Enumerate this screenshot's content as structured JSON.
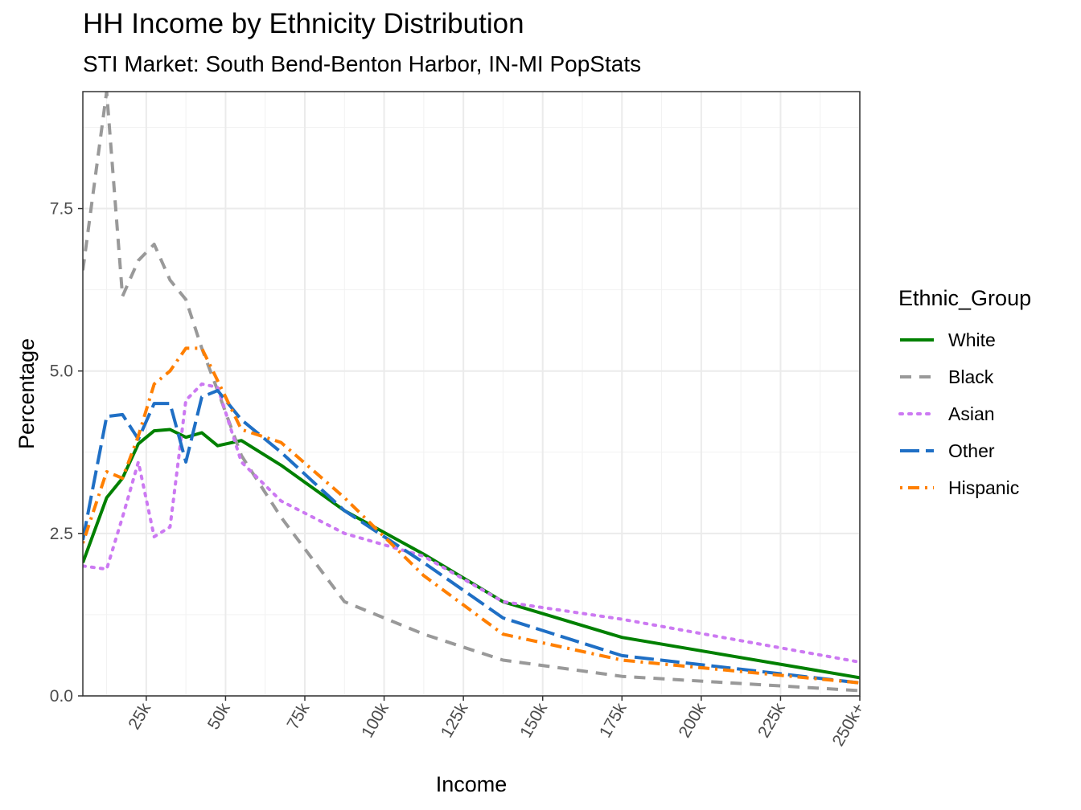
{
  "chart_data": {
    "type": "line",
    "title": "HH Income by Ethnicity Distribution",
    "subtitle": "STI Market: South Bend-Benton Harbor, IN-MI PopStats",
    "xlabel": "Income",
    "ylabel": "Percentage",
    "xlim": [
      5,
      250
    ],
    "ylim": [
      0,
      9.3
    ],
    "x_ticks": [
      25,
      50,
      75,
      100,
      125,
      150,
      175,
      200,
      225,
      250
    ],
    "x_tick_labels": [
      "25k",
      "50k",
      "75k",
      "100k",
      "125k",
      "150k",
      "175k",
      "200k",
      "225k",
      "250k+"
    ],
    "y_ticks": [
      0,
      2.5,
      5,
      7.5
    ],
    "y_tick_labels": [
      "0.0",
      "2.5",
      "5.0",
      "7.5"
    ],
    "grid": true,
    "legend_title": "Ethnic_Group",
    "legend_position": "right",
    "x": [
      5,
      12.5,
      17.5,
      22.5,
      27.5,
      32.5,
      37.5,
      42.5,
      47.5,
      55,
      67.5,
      87.5,
      112.5,
      137.5,
      175,
      250
    ],
    "series": [
      {
        "name": "White",
        "color": "#008000",
        "dash": "solid",
        "values": [
          2.05,
          3.05,
          3.35,
          3.88,
          4.08,
          4.1,
          3.98,
          4.05,
          3.85,
          3.93,
          3.55,
          2.85,
          2.18,
          1.45,
          0.9,
          0.28
        ]
      },
      {
        "name": "Black",
        "color": "#999999",
        "dash": "dashed",
        "values": [
          6.55,
          9.3,
          6.15,
          6.7,
          6.95,
          6.4,
          6.1,
          5.35,
          4.7,
          3.7,
          2.75,
          1.45,
          0.95,
          0.55,
          0.3,
          0.08
        ]
      },
      {
        "name": "Asian",
        "color": "#CC79F2",
        "dash": "dotted",
        "values": [
          2.0,
          1.95,
          2.75,
          3.6,
          2.45,
          2.6,
          4.55,
          4.8,
          4.75,
          3.6,
          3.0,
          2.5,
          2.15,
          1.45,
          1.18,
          0.52
        ]
      },
      {
        "name": "Other",
        "color": "#1F6FC5",
        "dash": "longdash",
        "values": [
          2.4,
          4.3,
          4.33,
          3.95,
          4.5,
          4.5,
          3.6,
          4.6,
          4.7,
          4.25,
          3.75,
          2.85,
          2.05,
          1.2,
          0.62,
          0.2
        ]
      },
      {
        "name": "Hispanic",
        "color": "#FF7F00",
        "dash": "dotdash",
        "values": [
          2.35,
          3.45,
          3.35,
          4.0,
          4.8,
          5.0,
          5.35,
          5.35,
          4.85,
          4.1,
          3.9,
          3.05,
          1.85,
          0.95,
          0.55,
          0.2
        ]
      }
    ]
  }
}
